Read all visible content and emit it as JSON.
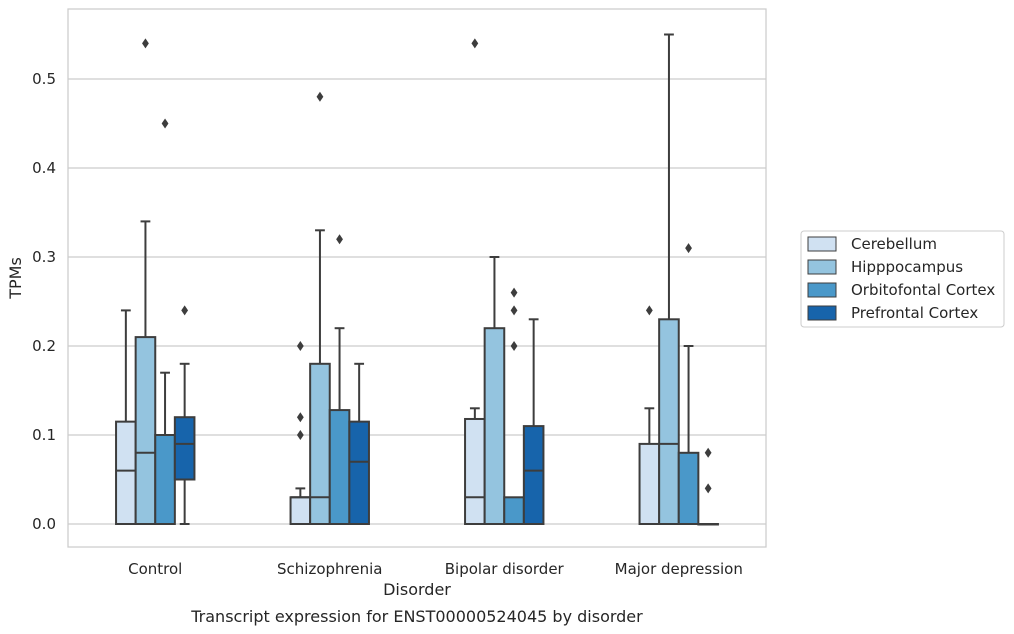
{
  "caption": "Transcript expression for ENST00000524045 by disorder",
  "chart_data": {
    "type": "box",
    "xlabel": "Disorder",
    "ylabel": "TPMs",
    "ylim": [
      -0.027,
      0.58
    ],
    "yticks": [
      "0.0",
      "0.1",
      "0.2",
      "0.3",
      "0.4",
      "0.5"
    ],
    "ytick_values": [
      0.0,
      0.1,
      0.2,
      0.3,
      0.4,
      0.5
    ],
    "grid": "horizontal",
    "legend_position": "right",
    "categories": [
      "Control",
      "Schizophrenia",
      "Bipolar disorder",
      "Major depression"
    ],
    "series": [
      {
        "name": "Cerebellum",
        "color": "#d0e1f2",
        "boxes": [
          {
            "q1": 0.0,
            "median": 0.06,
            "q3": 0.115,
            "whisker_low": 0.0,
            "whisker_high": 0.24,
            "outliers": []
          },
          {
            "q1": 0.0,
            "median": 0.03,
            "q3": 0.03,
            "whisker_low": 0.0,
            "whisker_high": 0.04,
            "outliers": [
              0.1,
              0.12,
              0.2
            ]
          },
          {
            "q1": 0.0,
            "median": 0.03,
            "q3": 0.118,
            "whisker_low": 0.0,
            "whisker_high": 0.13,
            "outliers": [
              0.54
            ]
          },
          {
            "q1": 0.0,
            "median": 0.0,
            "q3": 0.09,
            "whisker_low": 0.0,
            "whisker_high": 0.13,
            "outliers": [
              0.24
            ]
          }
        ]
      },
      {
        "name": "Hipppocampus",
        "color": "#94c4df",
        "boxes": [
          {
            "q1": 0.0,
            "median": 0.08,
            "q3": 0.21,
            "whisker_low": 0.0,
            "whisker_high": 0.34,
            "outliers": [
              0.54
            ]
          },
          {
            "q1": 0.0,
            "median": 0.03,
            "q3": 0.18,
            "whisker_low": 0.0,
            "whisker_high": 0.33,
            "outliers": [
              0.48
            ]
          },
          {
            "q1": 0.0,
            "median": 0.0,
            "q3": 0.22,
            "whisker_low": 0.0,
            "whisker_high": 0.3,
            "outliers": []
          },
          {
            "q1": 0.0,
            "median": 0.09,
            "q3": 0.23,
            "whisker_low": 0.0,
            "whisker_high": 0.55,
            "outliers": []
          }
        ]
      },
      {
        "name": "Orbitofontal Cortex",
        "color": "#4a98c9",
        "boxes": [
          {
            "q1": 0.0,
            "median": 0.0,
            "q3": 0.1,
            "whisker_low": 0.0,
            "whisker_high": 0.17,
            "outliers": [
              0.45
            ]
          },
          {
            "q1": 0.0,
            "median": 0.0,
            "q3": 0.128,
            "whisker_low": 0.0,
            "whisker_high": 0.22,
            "outliers": [
              0.32
            ]
          },
          {
            "q1": 0.0,
            "median": 0.0,
            "q3": 0.03,
            "whisker_low": 0.0,
            "whisker_high": 0.03,
            "outliers": [
              0.2,
              0.24,
              0.26
            ]
          },
          {
            "q1": 0.0,
            "median": 0.0,
            "q3": 0.08,
            "whisker_low": 0.0,
            "whisker_high": 0.2,
            "outliers": [
              0.31
            ]
          }
        ]
      },
      {
        "name": "Prefrontal Cortex",
        "color": "#1764ab",
        "boxes": [
          {
            "q1": 0.05,
            "median": 0.09,
            "q3": 0.12,
            "whisker_low": 0.0,
            "whisker_high": 0.18,
            "outliers": [
              0.24
            ]
          },
          {
            "q1": 0.0,
            "median": 0.07,
            "q3": 0.115,
            "whisker_low": 0.0,
            "whisker_high": 0.18,
            "outliers": []
          },
          {
            "q1": 0.0,
            "median": 0.06,
            "q3": 0.11,
            "whisker_low": 0.0,
            "whisker_high": 0.23,
            "outliers": []
          },
          {
            "q1": 0.0,
            "median": 0.0,
            "q3": 0.0,
            "whisker_low": 0.0,
            "whisker_high": 0.0,
            "outliers": [
              0.04,
              0.08
            ]
          }
        ]
      }
    ]
  }
}
